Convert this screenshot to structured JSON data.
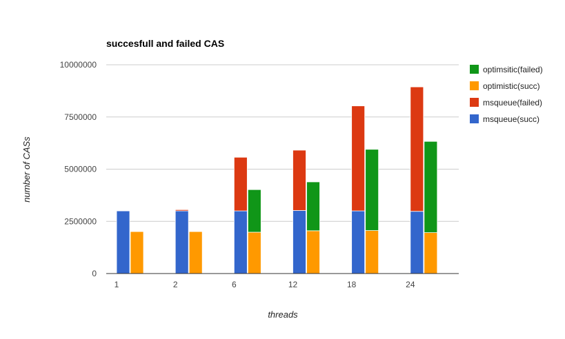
{
  "chart_data": {
    "type": "bar",
    "stacked": true,
    "title": "succesfull and failed CAS",
    "xlabel": "threads",
    "ylabel": "number of CASs",
    "categories": [
      "1",
      "2",
      "6",
      "12",
      "18",
      "24"
    ],
    "ylim": [
      0,
      10000000
    ],
    "yticks": [
      "0",
      "2500000",
      "5000000",
      "7500000",
      "10000000"
    ],
    "grid": true,
    "legend_position": "right",
    "groups": [
      {
        "name": "msqueue",
        "series": [
          {
            "name": "msqueue(succ)",
            "color": "#3366cc",
            "values": [
              3000000,
              3000000,
              3000000,
              3020000,
              3000000,
              2980000
            ]
          },
          {
            "name": "msqueue(failed)",
            "color": "#dc3912",
            "values": [
              0,
              60000,
              2570000,
              2890000,
              5030000,
              5960000
            ]
          }
        ]
      },
      {
        "name": "optimistic",
        "series": [
          {
            "name": "optimistic(succ)",
            "color": "#ff9900",
            "values": [
              2010000,
              2010000,
              1980000,
              2050000,
              2060000,
              1960000
            ]
          },
          {
            "name": "optimsitic(failed)",
            "color": "#109618",
            "values": [
              0,
              0,
              2040000,
              2340000,
              3890000,
              4370000
            ]
          }
        ]
      }
    ],
    "legend": [
      {
        "label": "optimsitic(failed)",
        "color": "#109618"
      },
      {
        "label": "optimistic(succ)",
        "color": "#ff9900"
      },
      {
        "label": "msqueue(failed)",
        "color": "#dc3912"
      },
      {
        "label": "msqueue(succ)",
        "color": "#3366cc"
      }
    ]
  }
}
